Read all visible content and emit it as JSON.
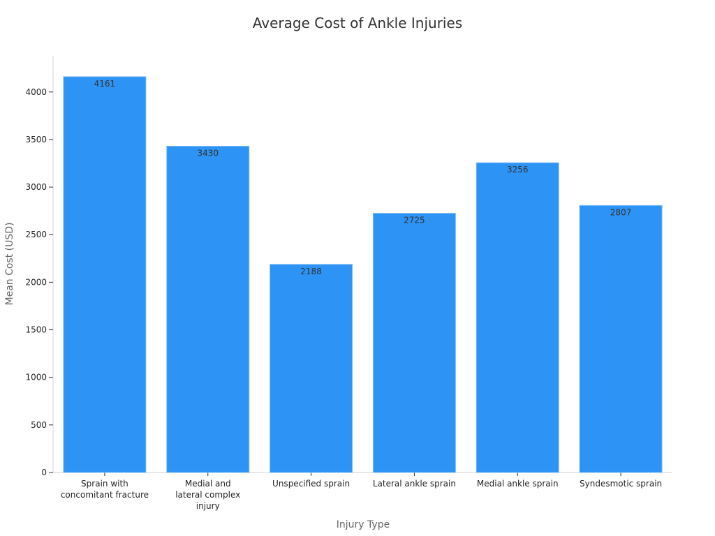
{
  "chart_data": {
    "type": "bar",
    "title": "Average Cost of Ankle Injuries",
    "xlabel": "Injury Type",
    "ylabel": "Mean Cost (USD)",
    "categories": [
      [
        "Sprain with",
        "concomitant fracture"
      ],
      [
        "Medial and",
        "lateral complex",
        "injury"
      ],
      [
        "Unspecified sprain"
      ],
      [
        "Lateral ankle sprain"
      ],
      [
        "Medial ankle sprain"
      ],
      [
        "Syndesmotic sprain"
      ]
    ],
    "values": [
      4161,
      3430,
      2188,
      2725,
      3256,
      2807
    ],
    "ylim": [
      0,
      4380
    ],
    "yticks": [
      0,
      500,
      1000,
      1500,
      2000,
      2500,
      3000,
      3500,
      4000
    ],
    "grid": false,
    "legend": "none",
    "bar_color": "#2d93f5",
    "bar_edge_color": "#7fbdf8"
  }
}
